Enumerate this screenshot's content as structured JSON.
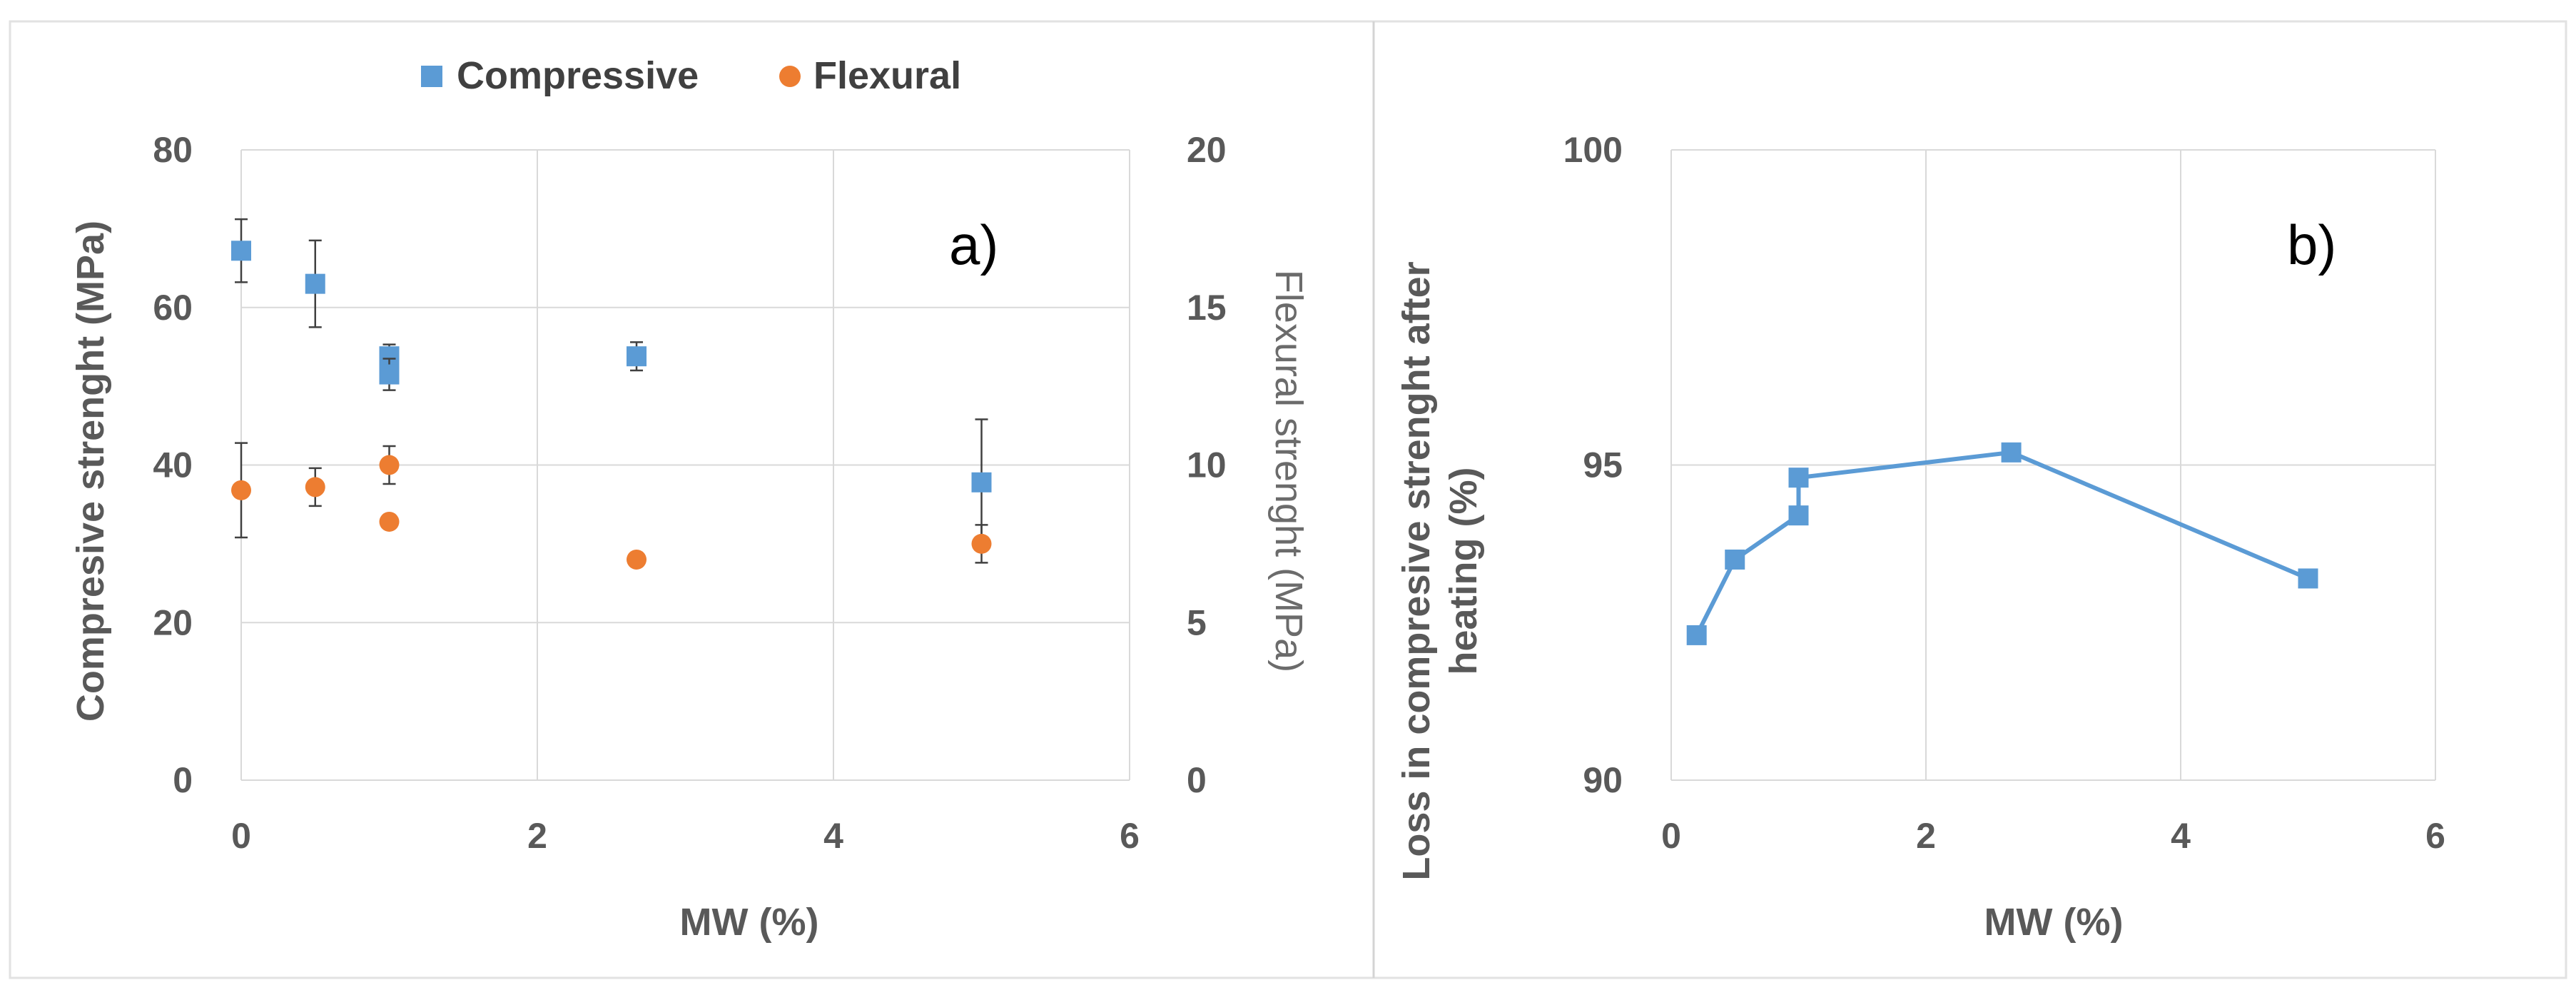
{
  "chart_data": [
    {
      "type": "scatter",
      "panel_label": "a)",
      "xlabel": "MW (%)",
      "ylabel": "Compresive strenght (MPa)",
      "y2label": "Flexural strenght (MPa)",
      "xlim": [
        0,
        6
      ],
      "ylim": [
        0,
        80
      ],
      "y2lim": [
        0,
        20
      ],
      "x_ticks": [
        0,
        2,
        4,
        6
      ],
      "y_ticks": [
        0,
        20,
        40,
        60,
        80
      ],
      "y2_ticks": [
        0,
        5,
        10,
        15,
        20
      ],
      "grid": true,
      "legend_position": "top-center",
      "series": [
        {
          "name": "Compressive",
          "axis": "left",
          "marker": "square",
          "color": "#5b9bd5",
          "points": [
            {
              "x": 0,
              "y": 67.2,
              "err": 4.0
            },
            {
              "x": 0.5,
              "y": 63.0,
              "err": 5.5
            },
            {
              "x": 1.0,
              "y": 53.8,
              "err": 1.5
            },
            {
              "x": 1.0,
              "y": 51.5,
              "err": 2.0
            },
            {
              "x": 2.67,
              "y": 53.8,
              "err": 1.8
            },
            {
              "x": 5.0,
              "y": 37.8,
              "err": 8.0
            }
          ]
        },
        {
          "name": "Flexural",
          "axis": "right",
          "marker": "circle",
          "color": "#ed7d31",
          "points": [
            {
              "x": 0,
              "y": 9.2,
              "err": 1.5
            },
            {
              "x": 0.5,
              "y": 9.3,
              "err": 0.6
            },
            {
              "x": 1.0,
              "y": 10.0,
              "err": 0.6
            },
            {
              "x": 1.0,
              "y": 8.2,
              "err": null
            },
            {
              "x": 2.67,
              "y": 7.0,
              "err": null
            },
            {
              "x": 5.0,
              "y": 7.5,
              "err": 0.6
            }
          ]
        }
      ]
    },
    {
      "type": "line",
      "panel_label": "b)",
      "xlabel": "MW (%)",
      "ylabel_lines": [
        "Loss in compresive strenght after",
        "heating (%)"
      ],
      "xlim": [
        0,
        6
      ],
      "ylim": [
        90,
        100
      ],
      "x_ticks": [
        0,
        2,
        4,
        6
      ],
      "y_ticks": [
        90,
        95,
        100
      ],
      "grid": true,
      "series": [
        {
          "marker": "square",
          "color": "#5b9bd5",
          "x": [
            0.2,
            0.5,
            1.0,
            1.0,
            2.67,
            5.0
          ],
          "y": [
            92.3,
            93.5,
            94.2,
            94.8,
            95.2,
            93.2
          ]
        }
      ]
    }
  ]
}
